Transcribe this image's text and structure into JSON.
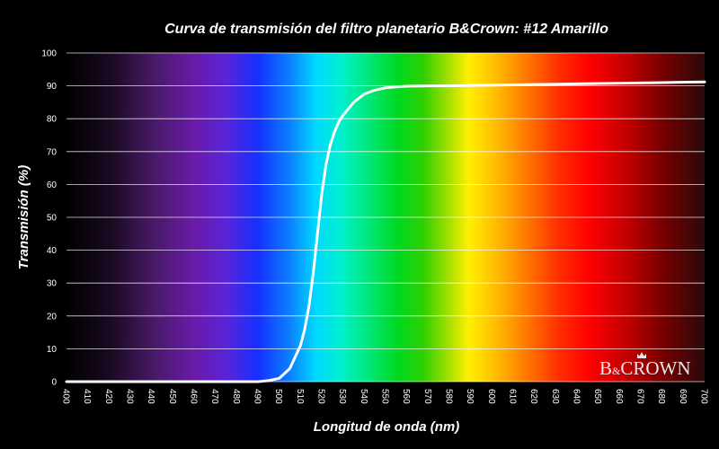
{
  "chart_data": {
    "type": "line",
    "title": "Curva de transmisión del filtro planetario B&Crown: #12 Amarillo",
    "xlabel": "Longitud de onda (nm)",
    "ylabel": "Transmisión (%)",
    "xlim": [
      400,
      700
    ],
    "ylim": [
      0,
      100
    ],
    "xticks": [
      400,
      410,
      420,
      430,
      440,
      450,
      460,
      470,
      480,
      490,
      500,
      510,
      520,
      530,
      540,
      550,
      560,
      570,
      580,
      590,
      600,
      610,
      620,
      630,
      640,
      650,
      660,
      670,
      680,
      690,
      700
    ],
    "yticks": [
      0,
      10,
      20,
      30,
      40,
      50,
      60,
      70,
      80,
      90,
      100
    ],
    "grid": true,
    "background": "visible spectrum gradient",
    "series": [
      {
        "color": "#ffffff",
        "x": [
          400,
          490,
          495,
          500,
          505,
          510,
          512,
          514,
          516,
          518,
          520,
          522,
          524,
          526,
          528,
          530,
          535,
          540,
          545,
          550,
          555,
          560,
          570,
          580,
          600,
          620,
          640,
          660,
          680,
          700
        ],
        "y": [
          0,
          0,
          0.3,
          1,
          4,
          11,
          16,
          23,
          33,
          45,
          57,
          66,
          72,
          76,
          79,
          81,
          85,
          87.5,
          88.7,
          89.4,
          89.7,
          89.9,
          90,
          90,
          90.2,
          90.4,
          90.6,
          90.8,
          91,
          91.2
        ]
      }
    ]
  },
  "logo": {
    "text_b": "B",
    "text_amp": "&",
    "text_crown": "CROWN"
  }
}
